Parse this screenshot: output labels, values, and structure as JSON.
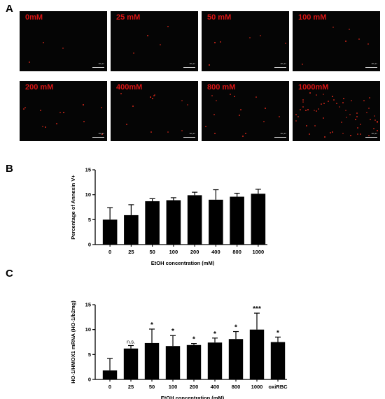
{
  "panels": {
    "a": "A",
    "b": "B",
    "c": "C"
  },
  "micrographs": [
    {
      "label": "0mM",
      "scale": "20 μm",
      "density": 0.05
    },
    {
      "label": "25 mM",
      "scale": "20 μm",
      "density": 0.07
    },
    {
      "label": "50 mM",
      "scale": "20 μm",
      "density": 0.1
    },
    {
      "label": "100 mM",
      "scale": "20 μm",
      "density": 0.1
    },
    {
      "label": "200 mM",
      "scale": "20 μm",
      "density": 0.2
    },
    {
      "label": "400mM",
      "scale": "20 μm",
      "density": 0.2
    },
    {
      "label": "800 mM",
      "scale": "20 μm",
      "density": 0.25
    },
    {
      "label": "1000mM",
      "scale": "20 μm",
      "density": 0.95
    }
  ],
  "colors": {
    "bar": "#000000",
    "label_red": "#d81414",
    "cell_red": "#e02a1c",
    "background": "#050505"
  },
  "chart_data": [
    {
      "type": "bar",
      "categories": [
        "0",
        "25",
        "50",
        "100",
        "200",
        "400",
        "800",
        "1000"
      ],
      "values": [
        5.0,
        5.9,
        8.7,
        8.9,
        9.9,
        9.0,
        9.6,
        10.2
      ],
      "errors": [
        2.4,
        2.1,
        0.5,
        0.5,
        0.6,
        2.0,
        0.7,
        0.9
      ],
      "xlabel": "EtOH concentration (mM)",
      "ylabel": "Percentage of Annexin V+",
      "ylim": [
        0,
        15
      ],
      "yticks": [
        "0",
        "5",
        "10",
        "15"
      ],
      "annotations": []
    },
    {
      "type": "bar",
      "categories": [
        "0",
        "25",
        "50",
        "100",
        "200",
        "400",
        "800",
        "1000",
        "oxiRBC"
      ],
      "values": [
        1.8,
        6.2,
        7.3,
        6.7,
        6.9,
        7.4,
        8.1,
        10.0,
        7.5
      ],
      "errors": [
        2.4,
        0.6,
        2.8,
        2.1,
        0.3,
        0.9,
        1.5,
        3.3,
        1.0
      ],
      "xlabel": "EtOH concentration (mM)",
      "ylabel": "HO-1/HMOX1 mRNA (HO-1/b2mg)",
      "ylim": [
        0,
        15
      ],
      "yticks": [
        "0",
        "5",
        "10",
        "15"
      ],
      "annotations": [
        "",
        "n.s.",
        "*",
        "*",
        "*",
        "*",
        "*",
        "***",
        "*"
      ]
    }
  ]
}
